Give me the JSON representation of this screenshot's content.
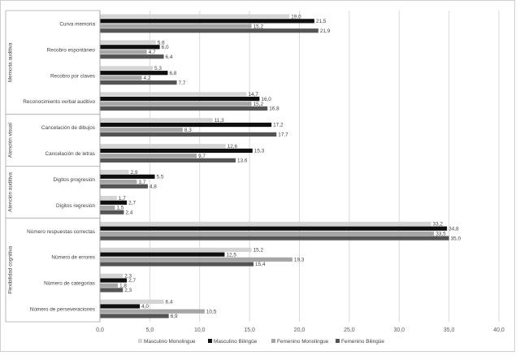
{
  "chart_data": {
    "type": "bar",
    "orientation": "horizontal",
    "xlim": [
      0,
      40
    ],
    "x_ticks": [
      "0,0",
      "5,0",
      "10,0",
      "15,0",
      "20,0",
      "25,0",
      "30,0",
      "35,0",
      "40,0"
    ],
    "grid": "vertical",
    "legend_position": "bottom",
    "series": [
      {
        "name": "Masculino Monolingue",
        "color": "#d4d4d4"
      },
      {
        "name": "Masculino Bilingüe",
        "color": "#0f0f0f"
      },
      {
        "name": "Femenino Monolingue",
        "color": "#a6a6a6"
      },
      {
        "name": "Femenino Bilingüe",
        "color": "#545454"
      }
    ],
    "groups": [
      {
        "label": "Memoria auditiva",
        "categories": [
          {
            "label": "Curva memoria",
            "values": [
              19.0,
              21.5,
              15.2,
              21.9
            ],
            "value_labels": [
              "19,0",
              "21,5",
              "15,2",
              "21,9"
            ]
          },
          {
            "label": "Recobro espontáneo",
            "values": [
              5.6,
              6.0,
              4.7,
              6.4
            ],
            "value_labels": [
              "5,6",
              "6,0",
              "4,7",
              "6,4"
            ]
          },
          {
            "label": "Recobro por claves",
            "values": [
              5.3,
              6.8,
              4.2,
              7.7
            ],
            "value_labels": [
              "5,3",
              "6,8",
              "4,2",
              "7,7"
            ]
          },
          {
            "label": "Reconocimiento verbal auditivo",
            "values": [
              14.7,
              16.0,
              15.2,
              16.8
            ],
            "value_labels": [
              "14,7",
              "16,0",
              "15,2",
              "16,8"
            ]
          }
        ]
      },
      {
        "label": "Atención visual",
        "categories": [
          {
            "label": "Cancelación de dibujos",
            "values": [
              11.3,
              17.2,
              8.3,
              17.7
            ],
            "value_labels": [
              "11,3",
              "17,2",
              "8,3",
              "17,7"
            ]
          },
          {
            "label": "Cancelación de letras",
            "values": [
              12.6,
              15.3,
              9.7,
              13.6
            ],
            "value_labels": [
              "12,6",
              "15,3",
              "9,7",
              "13,6"
            ]
          }
        ]
      },
      {
        "label": "Atención auditiva",
        "categories": [
          {
            "label": "Digitos progresión",
            "values": [
              2.9,
              5.5,
              3.7,
              4.8
            ],
            "value_labels": [
              "2,9",
              "5,5",
              "3,7",
              "4,8"
            ]
          },
          {
            "label": "Digitos regresión",
            "values": [
              1.7,
              2.7,
              1.5,
              2.4
            ],
            "value_labels": [
              "1,7",
              "2,7",
              "1,5",
              "2,4"
            ]
          }
        ]
      },
      {
        "label": "Flexibilidad cognitiva",
        "categories": [
          {
            "label": "Número respuestas correctas",
            "values": [
              33.2,
              34.8,
              33.5,
              35.0
            ],
            "value_labels": [
              "33,2",
              "34,8",
              "33,5",
              "35,0"
            ]
          },
          {
            "label": "Número de errores",
            "values": [
              15.2,
              12.5,
              19.3,
              15.4
            ],
            "value_labels": [
              "15,2",
              "12,5",
              "19,3",
              "15,4"
            ]
          },
          {
            "label": "Número de categorias",
            "values": [
              2.3,
              2.7,
              1.8,
              2.3
            ],
            "value_labels": [
              "2,3",
              "2,7",
              "1,8",
              "2,3"
            ]
          },
          {
            "label": "Número de perseveraciones",
            "values": [
              6.4,
              4.0,
              10.5,
              6.9
            ],
            "value_labels": [
              "6,4",
              "4,0",
              "10,5",
              "6,9"
            ]
          }
        ]
      }
    ]
  }
}
